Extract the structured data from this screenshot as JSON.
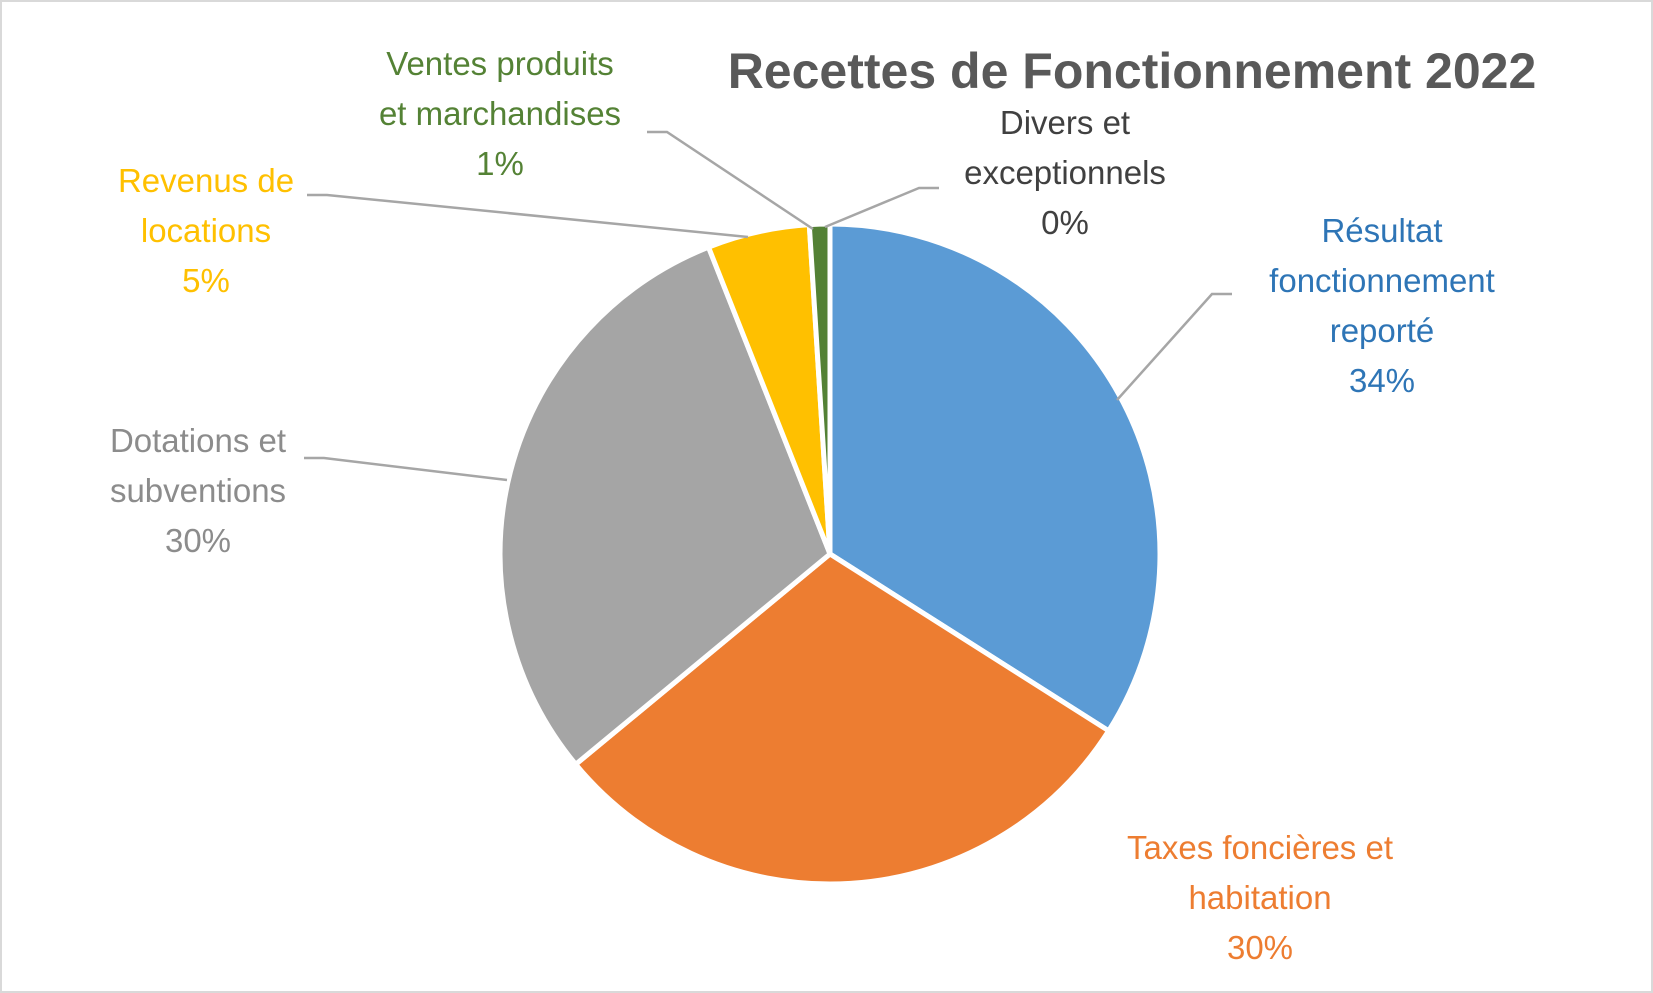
{
  "chart_data": {
    "type": "pie",
    "title": "Recettes de Fonctionnement 2022",
    "slices": [
      {
        "name": "Résultat fonctionnement reporté",
        "value": 34,
        "percent_label": "34%",
        "color": "#5b9bd5",
        "label_color": "#2e75b6"
      },
      {
        "name": "Taxes foncières et habitation",
        "value": 30,
        "percent_label": "30%",
        "color": "#ed7d31",
        "label_color": "#ed7d31"
      },
      {
        "name": "Dotations et subventions",
        "value": 30,
        "percent_label": "30%",
        "color": "#a5a5a5",
        "label_color": "#8c8c8c"
      },
      {
        "name": "Revenus de locations",
        "value": 5,
        "percent_label": "5%",
        "color": "#ffc000",
        "label_color": "#ffc000"
      },
      {
        "name": "Ventes produits et marchandises",
        "value": 1,
        "percent_label": "1%",
        "color": "#538135",
        "label_color": "#548235"
      },
      {
        "name": "Divers et exceptionnels",
        "value": 0,
        "percent_label": "0%",
        "color": "#1f3864",
        "label_color": "#404040"
      }
    ],
    "legend": "none",
    "colors": {
      "title": "#595959",
      "leader_lines": "#a6a6a6",
      "background": "#ffffff",
      "border": "#d9d9d9"
    }
  }
}
